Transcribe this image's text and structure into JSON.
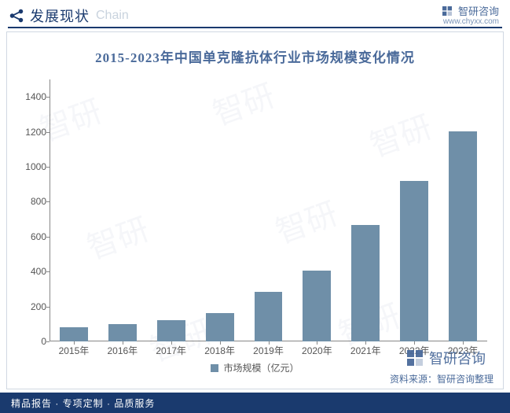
{
  "header": {
    "title_zh": "发展现状",
    "title_en": "Chain"
  },
  "brand": {
    "name": "智研咨询",
    "url": "www.chyxx.com",
    "logo_color": "#4a6a9a"
  },
  "chart": {
    "type": "bar",
    "title": "2015-2023年中国单克隆抗体行业市场规模变化情况",
    "title_fontsize": 17,
    "title_color": "#4a6a9a",
    "categories": [
      "2015年",
      "2016年",
      "2017年",
      "2018年",
      "2019年",
      "2020年",
      "2021年",
      "2022年",
      "2023年"
    ],
    "values": [
      80,
      100,
      120,
      160,
      285,
      405,
      665,
      920,
      1205
    ],
    "bar_color": "#6f8fa8",
    "bar_width_ratio": 0.58,
    "ylim": [
      0,
      1500
    ],
    "ytick_step": 200,
    "yticks": [
      0,
      200,
      400,
      600,
      800,
      1000,
      1200,
      1400
    ],
    "axis_color": "#888888",
    "label_fontsize": 12,
    "label_color": "#555555",
    "background_color": "#ffffff",
    "border_color": "#d0d8e2",
    "legend_label": "市场规模（亿元）"
  },
  "source": {
    "text": "资料来源：智研咨询整理"
  },
  "footer": {
    "text": "精品报告 · 专项定制 · 品质服务"
  },
  "watermark_bg_text": "智研"
}
